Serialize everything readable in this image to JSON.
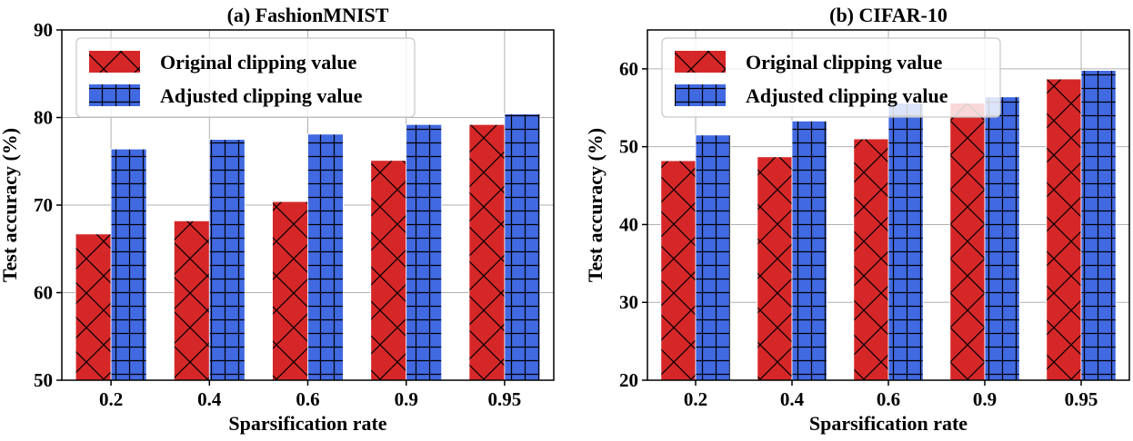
{
  "chart_data": [
    {
      "type": "bar",
      "title": "(a) FashionMNIST",
      "xlabel": "Sparsification rate",
      "ylabel": "Test accuracy (%)",
      "categories": [
        "0.2",
        "0.4",
        "0.6",
        "0.9",
        "0.95"
      ],
      "ylim": [
        50,
        90
      ],
      "yticks": [
        50,
        60,
        70,
        80,
        90
      ],
      "grid": true,
      "legend_position": "top-left",
      "series": [
        {
          "name": "Original clipping value",
          "color": "#d62728",
          "hatch": "x",
          "values": [
            66.7,
            68.2,
            70.4,
            75.1,
            79.2
          ]
        },
        {
          "name": "Adjusted clipping value",
          "color": "#4169e1",
          "hatch": "+",
          "values": [
            76.4,
            77.5,
            78.1,
            79.2,
            80.4
          ]
        }
      ]
    },
    {
      "type": "bar",
      "title": "(b) CIFAR-10",
      "xlabel": "Sparsification rate",
      "ylabel": "Test accuracy (%)",
      "categories": [
        "0.2",
        "0.4",
        "0.6",
        "0.9",
        "0.95"
      ],
      "ylim": [
        20,
        65
      ],
      "yticks": [
        20,
        30,
        40,
        50,
        60
      ],
      "grid": true,
      "legend_position": "top-left",
      "series": [
        {
          "name": "Original clipping value",
          "color": "#d62728",
          "hatch": "x",
          "values": [
            48.2,
            48.7,
            51.0,
            55.6,
            58.7
          ]
        },
        {
          "name": "Adjusted clipping value",
          "color": "#4169e1",
          "hatch": "+",
          "values": [
            51.5,
            53.3,
            55.6,
            56.4,
            59.8
          ]
        }
      ]
    }
  ]
}
